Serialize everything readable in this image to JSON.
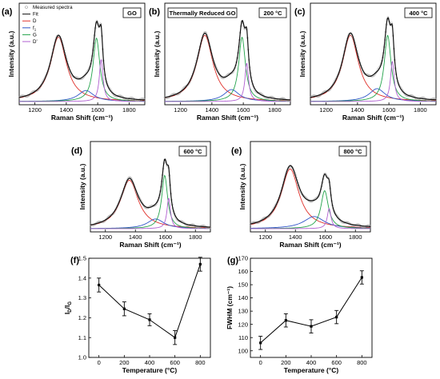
{
  "figure": {
    "legend": {
      "items": [
        {
          "label": "Measured spectra",
          "color": "#9a9a9a",
          "marker": "circle"
        },
        {
          "label": "Fit",
          "color": "#111111",
          "marker": "line"
        },
        {
          "label": "D",
          "color": "#e0302a",
          "marker": "line"
        },
        {
          "label": "f1",
          "color": "#2f55c8",
          "marker": "line"
        },
        {
          "label": "G",
          "color": "#22a34a",
          "marker": "line"
        },
        {
          "label": "D'",
          "color": "#b060d0",
          "marker": "line"
        }
      ]
    }
  },
  "chart_data": [
    {
      "id": "a",
      "type": "line",
      "panel_label": "(a)",
      "title": "",
      "tag": "GO",
      "subtitle_box": "",
      "xlabel": "Raman Shift (cm⁻¹)",
      "ylabel": "Intensity (a.u.)",
      "xlim": [
        1100,
        1900
      ],
      "x_ticks": [
        1200,
        1400,
        1600,
        1800
      ],
      "y_scale": "arbitrary",
      "grid": false,
      "peaks": [
        {
          "name": "D",
          "center": 1350,
          "height": 0.7,
          "width": 62,
          "color": "#e0302a"
        },
        {
          "name": "f1",
          "center": 1525,
          "height": 0.12,
          "width": 60,
          "color": "#2f55c8"
        },
        {
          "name": "G",
          "center": 1592,
          "height": 0.69,
          "width": 26,
          "color": "#22a34a"
        },
        {
          "name": "D'",
          "center": 1622,
          "height": 0.46,
          "width": 14,
          "color": "#b060d0"
        }
      ]
    },
    {
      "id": "b",
      "type": "line",
      "panel_label": "(b)",
      "tag": "200 °C",
      "subtitle_box": "Thermally Reduced GO",
      "xlabel": "Raman Shift (cm⁻¹)",
      "ylabel": "Intensity (a.u.)",
      "xlim": [
        1100,
        1900
      ],
      "x_ticks": [
        1200,
        1400,
        1600,
        1800
      ],
      "y_scale": "arbitrary",
      "grid": false,
      "peaks": [
        {
          "name": "D",
          "center": 1355,
          "height": 0.72,
          "width": 62,
          "color": "#e0302a"
        },
        {
          "name": "f1",
          "center": 1525,
          "height": 0.13,
          "width": 60,
          "color": "#2f55c8"
        },
        {
          "name": "G",
          "center": 1592,
          "height": 0.7,
          "width": 26,
          "color": "#22a34a"
        },
        {
          "name": "D'",
          "center": 1622,
          "height": 0.42,
          "width": 14,
          "color": "#b060d0"
        }
      ]
    },
    {
      "id": "c",
      "type": "line",
      "panel_label": "(c)",
      "tag": "400 °C",
      "subtitle_box": "",
      "xlabel": "Raman Shift (cm⁻¹)",
      "ylabel": "Intensity (a.u.)",
      "xlim": [
        1100,
        1900
      ],
      "x_ticks": [
        1200,
        1400,
        1600,
        1800
      ],
      "y_scale": "arbitrary",
      "grid": false,
      "peaks": [
        {
          "name": "D",
          "center": 1355,
          "height": 0.72,
          "width": 62,
          "color": "#e0302a"
        },
        {
          "name": "f1",
          "center": 1525,
          "height": 0.14,
          "width": 62,
          "color": "#2f55c8"
        },
        {
          "name": "G",
          "center": 1592,
          "height": 0.72,
          "width": 26,
          "color": "#22a34a"
        },
        {
          "name": "D'",
          "center": 1622,
          "height": 0.44,
          "width": 14,
          "color": "#b060d0"
        }
      ]
    },
    {
      "id": "d",
      "type": "line",
      "panel_label": "(d)",
      "tag": "600 °C",
      "subtitle_box": "",
      "xlabel": "Raman Shift (cm⁻¹)",
      "ylabel": "Intensity (a.u.)",
      "xlim": [
        1100,
        1900
      ],
      "x_ticks": [
        1200,
        1400,
        1600,
        1800
      ],
      "y_scale": "arbitrary",
      "grid": false,
      "peaks": [
        {
          "name": "D",
          "center": 1360,
          "height": 0.6,
          "width": 72,
          "color": "#e0302a"
        },
        {
          "name": "f1",
          "center": 1535,
          "height": 0.12,
          "width": 68,
          "color": "#2f55c8"
        },
        {
          "name": "G",
          "center": 1595,
          "height": 0.66,
          "width": 24,
          "color": "#22a34a"
        },
        {
          "name": "D'",
          "center": 1622,
          "height": 0.38,
          "width": 14,
          "color": "#b060d0"
        }
      ]
    },
    {
      "id": "e",
      "type": "line",
      "panel_label": "(e)",
      "tag": "800 °C",
      "subtitle_box": "",
      "xlabel": "Raman Shift (cm⁻¹)",
      "ylabel": "Intensity (a.u.)",
      "xlim": [
        1100,
        1900
      ],
      "x_ticks": [
        1200,
        1400,
        1600,
        1800
      ],
      "y_scale": "arbitrary",
      "grid": false,
      "peaks": [
        {
          "name": "D",
          "center": 1365,
          "height": 0.74,
          "width": 72,
          "color": "#e0302a"
        },
        {
          "name": "f1",
          "center": 1525,
          "height": 0.15,
          "width": 85,
          "color": "#2f55c8"
        },
        {
          "name": "G",
          "center": 1595,
          "height": 0.47,
          "width": 30,
          "color": "#22a34a"
        },
        {
          "name": "D'",
          "center": 1625,
          "height": 0.25,
          "width": 15,
          "color": "#b060d0"
        }
      ]
    },
    {
      "id": "f",
      "type": "line",
      "panel_label": "(f)",
      "xlabel": "Temperature (°C)",
      "ylabel": "ID/IG",
      "ylabel_main": "I",
      "ylabel_sub1": "D",
      "ylabel_mid": "/I",
      "ylabel_sub2": "G",
      "xlim": [
        -80,
        880
      ],
      "ylim": [
        1.0,
        1.5
      ],
      "x_ticks": [
        0,
        200,
        400,
        600,
        800
      ],
      "y_ticks": [
        1.0,
        1.1,
        1.2,
        1.3,
        1.4,
        1.5
      ],
      "y_tick_labels": [
        "1.0",
        "1.1",
        "1.2",
        "1.3",
        "1.4",
        "1.5"
      ],
      "grid": false,
      "x": [
        0,
        200,
        400,
        600,
        800
      ],
      "y": [
        1.365,
        1.245,
        1.19,
        1.1,
        1.47
      ],
      "yerr": [
        0.035,
        0.035,
        0.03,
        0.035,
        0.035
      ]
    },
    {
      "id": "g",
      "type": "line",
      "panel_label": "(g)",
      "xlabel": "Temperature (°C)",
      "ylabel": "FWHM (cm⁻¹)",
      "xlim": [
        -80,
        880
      ],
      "ylim": [
        95,
        170
      ],
      "x_ticks": [
        0,
        200,
        400,
        600,
        800
      ],
      "y_ticks": [
        100,
        110,
        120,
        130,
        140,
        150,
        160,
        170
      ],
      "y_tick_labels": [
        "100",
        "110",
        "120",
        "130",
        "140",
        "150",
        "160",
        "170"
      ],
      "grid": false,
      "x": [
        0,
        200,
        400,
        600,
        800
      ],
      "y": [
        106,
        123,
        118.5,
        125.5,
        155.5
      ],
      "yerr": [
        5,
        5,
        5,
        5,
        5
      ]
    }
  ]
}
